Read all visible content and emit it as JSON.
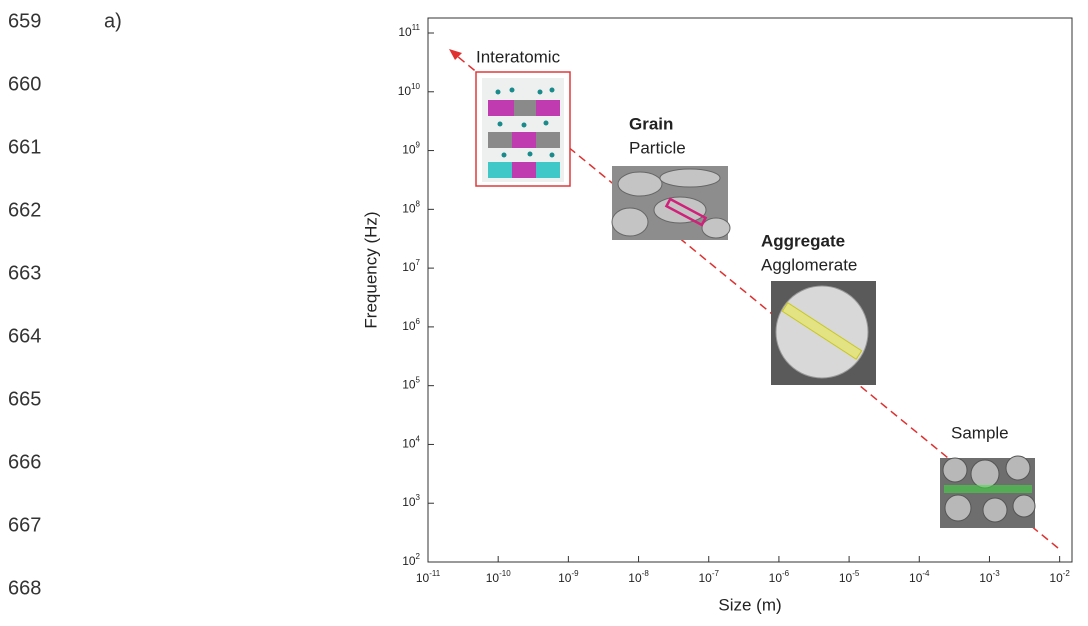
{
  "line_numbers": [
    "659",
    "660",
    "661",
    "662",
    "663",
    "664",
    "665",
    "666",
    "667",
    "668"
  ],
  "panel_label": "a)",
  "chart_data": {
    "type": "line",
    "x_label": "Size (m)",
    "y_label": "Frequency (Hz)",
    "xlog": true,
    "ylog": true,
    "xlim": [
      1e-11,
      0.015
    ],
    "ylim": [
      100,
      180000000000.0
    ],
    "xticks": [
      {
        "value": 1e-11,
        "label": "10",
        "exponent": "-11"
      },
      {
        "value": 1e-10,
        "label": "10",
        "exponent": "-10"
      },
      {
        "value": 1e-09,
        "label": "10",
        "exponent": "-9"
      },
      {
        "value": 1e-08,
        "label": "10",
        "exponent": "-8"
      },
      {
        "value": 1e-07,
        "label": "10",
        "exponent": "-7"
      },
      {
        "value": 1e-06,
        "label": "10",
        "exponent": "-6"
      },
      {
        "value": 1e-05,
        "label": "10",
        "exponent": "-5"
      },
      {
        "value": 0.0001,
        "label": "10",
        "exponent": "-4"
      },
      {
        "value": 0.001,
        "label": "10",
        "exponent": "-3"
      },
      {
        "value": 0.01,
        "label": "10",
        "exponent": "-2"
      }
    ],
    "yticks": [
      {
        "value": 100,
        "label": "10",
        "exponent": "2"
      },
      {
        "value": 1000,
        "label": "10",
        "exponent": "3"
      },
      {
        "value": 10000,
        "label": "10",
        "exponent": "4"
      },
      {
        "value": 100000,
        "label": "10",
        "exponent": "5"
      },
      {
        "value": 1000000,
        "label": "10",
        "exponent": "6"
      },
      {
        "value": 10000000,
        "label": "10",
        "exponent": "7"
      },
      {
        "value": 100000000,
        "label": "10",
        "exponent": "8"
      },
      {
        "value": 1000000000,
        "label": "10",
        "exponent": "9"
      },
      {
        "value": 10000000000,
        "label": "10",
        "exponent": "10"
      },
      {
        "value": 100000000000,
        "label": "10",
        "exponent": "11"
      }
    ],
    "annotations": [
      "Interatomic",
      "Grain",
      "Particle",
      "Aggregate",
      "Agglomerate",
      "Sample"
    ]
  }
}
